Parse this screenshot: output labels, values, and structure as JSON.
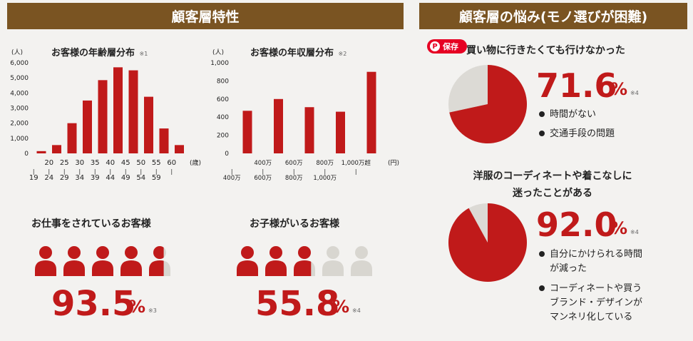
{
  "headers": {
    "left": "顧客層特性",
    "right": "顧客層の悩み(モノ選びが困難)"
  },
  "pin_button": {
    "icon": "P",
    "label": "保存"
  },
  "chart_data": [
    {
      "type": "bar",
      "title": "お客様の年齢層分布",
      "note": "※1",
      "yunit": "(人)",
      "xunit": "(歳)",
      "yticks": [
        "0",
        "1,000",
        "2,000",
        "3,000",
        "4,000",
        "5,000",
        "6,000"
      ],
      "ylim": [
        0,
        6000
      ],
      "categories_top": [
        "",
        "20",
        "25",
        "30",
        "35",
        "40",
        "45",
        "50",
        "55",
        "60"
      ],
      "categories_bottom": [
        "19",
        "24",
        "29",
        "34",
        "39",
        "44",
        "49",
        "54",
        "59",
        ""
      ],
      "values": [
        150,
        550,
        2000,
        3500,
        4850,
        5700,
        5500,
        3750,
        1650,
        550
      ],
      "color": "#c01a1a"
    },
    {
      "type": "bar",
      "title": "お客様の年収層分布",
      "note": "※2",
      "yunit": "(人)",
      "xunit": "(円)",
      "yticks": [
        "0",
        "200",
        "400",
        "600",
        "800",
        "1,000"
      ],
      "ylim": [
        0,
        1000
      ],
      "categories_top": [
        "",
        "400万",
        "600万",
        "800万",
        "1,000万超"
      ],
      "categories_bottom": [
        "400万",
        "600万",
        "800万",
        "1,000万",
        ""
      ],
      "values": [
        470,
        600,
        510,
        460,
        900
      ],
      "color": "#c01a1a"
    },
    {
      "type": "pie",
      "title": "買い物に行きたくても行けなかった",
      "value": 71.6,
      "value_text": "71.6",
      "percent": "%",
      "note": "※4",
      "reasons": [
        "時間がない",
        "交通手段の問題"
      ],
      "colors": {
        "main": "#c01a1a",
        "rest": "#dcdad5"
      }
    },
    {
      "type": "pie",
      "title_lines": [
        "洋服のコーディネートや着こなしに",
        "迷ったことがある"
      ],
      "value": 92.0,
      "value_text": "92.0",
      "percent": "%",
      "note": "※4",
      "reasons": [
        [
          "自分にかけられる時間",
          "が減った"
        ],
        [
          "コーディネートや買う",
          "ブランド・デザインが",
          "マンネリ化している"
        ]
      ],
      "colors": {
        "main": "#c01a1a",
        "rest": "#dcdad5"
      }
    }
  ],
  "stats": [
    {
      "title": "お仕事をされているお客様",
      "value_text": "93.5",
      "value": 93.5,
      "percent": "%",
      "note": "※3",
      "icons": 5
    },
    {
      "title": "お子様がいるお客様",
      "value_text": "55.8",
      "value": 55.8,
      "percent": "%",
      "note": "※4",
      "icons": 5
    }
  ],
  "icon_colors": {
    "on": "#c01a1a",
    "off": "#d8d6d0"
  }
}
